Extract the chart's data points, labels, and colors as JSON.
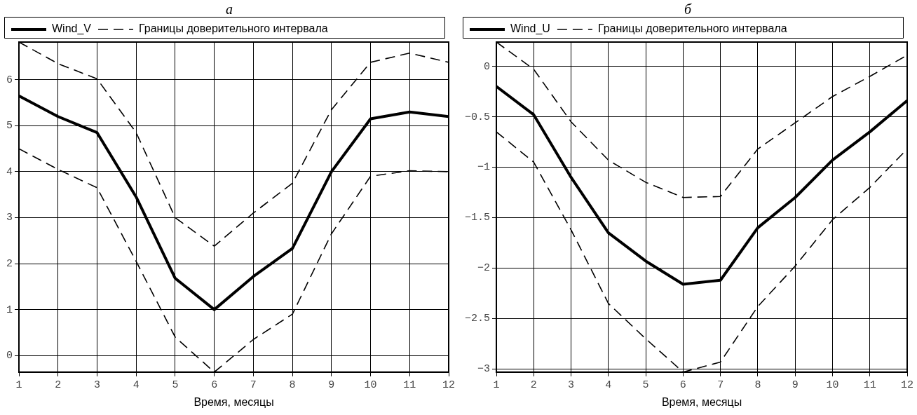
{
  "chart_data": [
    {
      "type": "line",
      "title": "а",
      "xlabel": "Время, месяцы",
      "x": [
        1,
        2,
        3,
        4,
        5,
        6,
        7,
        8,
        9,
        10,
        11,
        12
      ],
      "xlim": [
        1,
        12
      ],
      "xticks": [
        1,
        2,
        3,
        4,
        5,
        6,
        7,
        8,
        9,
        10,
        11,
        12
      ],
      "ylim": [
        -0.36,
        6.82
      ],
      "yticks": [
        0,
        1,
        2,
        3,
        4,
        5,
        6
      ],
      "grid": true,
      "legend": "top left",
      "series": [
        {
          "name": "Wind_V",
          "color": "#000000",
          "line_style": "solid",
          "values": [
            5.65,
            5.2,
            4.85,
            3.45,
            1.68,
            1.0,
            1.72,
            2.33,
            4.0,
            5.15,
            5.3,
            5.2
          ]
        },
        {
          "name": "Границы доверительного интервала",
          "color": "#000000",
          "line_style": "dashed",
          "values": [
            6.82,
            6.35,
            6.02,
            4.85,
            3.0,
            2.38,
            3.1,
            3.75,
            5.35,
            6.38,
            6.58,
            6.38
          ]
        },
        {
          "color": "#000000",
          "line_style": "dashed",
          "values": [
            4.5,
            4.05,
            3.65,
            2.05,
            0.4,
            -0.36,
            0.35,
            0.9,
            2.65,
            3.9,
            4.02,
            4.0
          ]
        }
      ]
    },
    {
      "type": "line",
      "title": "б",
      "xlabel": "Время, месяцы",
      "x": [
        1,
        2,
        3,
        4,
        5,
        6,
        7,
        8,
        9,
        10,
        11,
        12
      ],
      "xlim": [
        1,
        12
      ],
      "xticks": [
        1,
        2,
        3,
        4,
        5,
        6,
        7,
        8,
        9,
        10,
        11,
        12
      ],
      "ylim": [
        -3.03,
        0.24
      ],
      "yticks": [
        -3,
        -2.5,
        -2,
        -1.5,
        -1,
        -0.5,
        0
      ],
      "grid": true,
      "legend": "top left",
      "series": [
        {
          "name": "Wind_U",
          "color": "#000000",
          "line_style": "solid",
          "values": [
            -0.2,
            -0.48,
            -1.1,
            -1.65,
            -1.93,
            -2.16,
            -2.12,
            -1.6,
            -1.3,
            -0.93,
            -0.65,
            -0.34
          ]
        },
        {
          "name": "Границы доверительного интервала",
          "color": "#000000",
          "line_style": "dashed",
          "values": [
            0.24,
            -0.03,
            -0.55,
            -0.93,
            -1.15,
            -1.3,
            -1.29,
            -0.82,
            -0.56,
            -0.3,
            -0.1,
            0.11
          ]
        },
        {
          "color": "#000000",
          "line_style": "dashed",
          "values": [
            -0.65,
            -0.95,
            -1.62,
            -2.35,
            -2.7,
            -3.03,
            -2.93,
            -2.38,
            -1.98,
            -1.52,
            -1.2,
            -0.82
          ]
        }
      ]
    }
  ]
}
